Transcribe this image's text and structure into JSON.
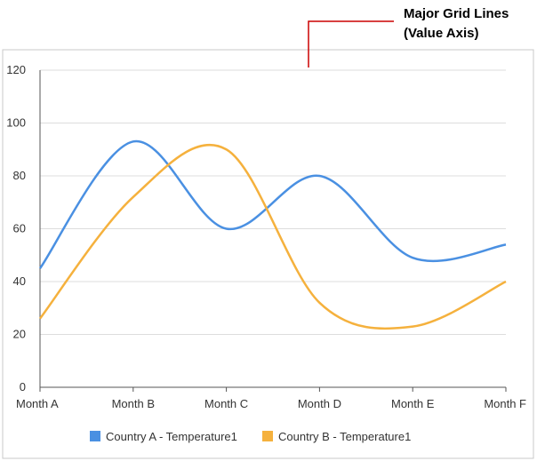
{
  "callout": {
    "lines": [
      "Major Grid Lines",
      "(Value Axis)"
    ],
    "color": "#cc0000"
  },
  "chart_data": {
    "type": "line",
    "smooth": true,
    "categories": [
      "Month A",
      "Month B",
      "Month C",
      "Month D",
      "Month E",
      "Month F"
    ],
    "ylim": [
      0,
      120
    ],
    "yticks": [
      0,
      20,
      40,
      60,
      80,
      100,
      120
    ],
    "grid": true,
    "legend_position": "bottom",
    "series": [
      {
        "name": "Country A - Temperature1",
        "color": "#4a90e2",
        "values": [
          45,
          93,
          60,
          80,
          49,
          54
        ]
      },
      {
        "name": "Country B - Temperature1",
        "color": "#f5b13d",
        "values": [
          26,
          72,
          90,
          32,
          23,
          40
        ]
      }
    ]
  }
}
